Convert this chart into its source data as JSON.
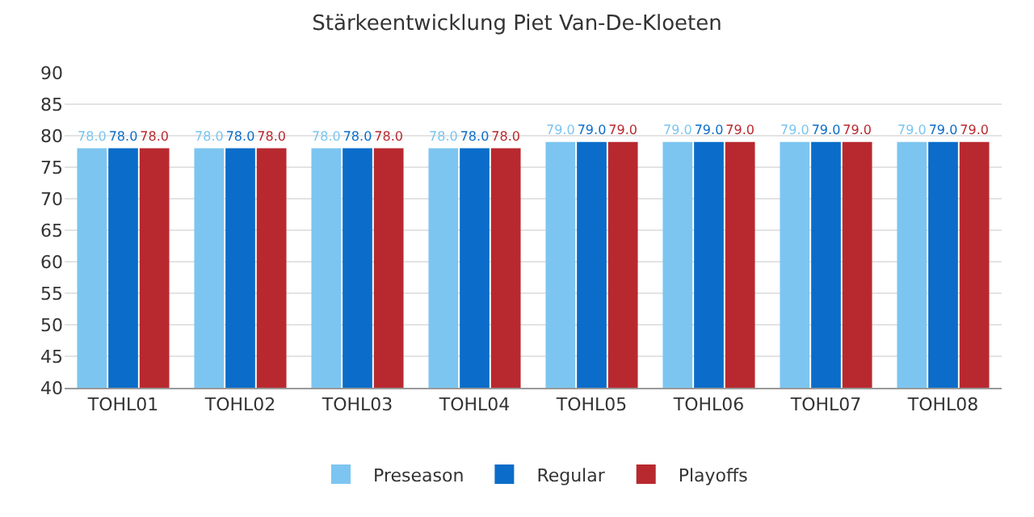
{
  "chart_data": {
    "type": "bar",
    "title": "Stärkeentwicklung Piet Van-De-Kloeten",
    "categories": [
      "TOHL01",
      "TOHL02",
      "TOHL03",
      "TOHL04",
      "TOHL05",
      "TOHL06",
      "TOHL07",
      "TOHL08"
    ],
    "series": [
      {
        "name": "Preseason",
        "color": "#7cc5f0",
        "values": [
          78,
          78,
          78,
          78,
          79,
          79,
          79,
          79
        ],
        "value_labels": [
          "78.0",
          "78.0",
          "78.0",
          "78.0",
          "79.0",
          "79.0",
          "79.0",
          "79.0"
        ]
      },
      {
        "name": "Regular",
        "color": "#0b6dc9",
        "values": [
          78,
          78,
          78,
          78,
          79,
          79,
          79,
          79
        ],
        "value_labels": [
          "78.0",
          "78.0",
          "78.0",
          "78.0",
          "79.0",
          "79.0",
          "79.0",
          "79.0"
        ]
      },
      {
        "name": "Playoffs",
        "color": "#b8292f",
        "values": [
          78,
          78,
          78,
          78,
          79,
          79,
          79,
          79
        ],
        "value_labels": [
          "78.0",
          "78.0",
          "78.0",
          "78.0",
          "79.0",
          "79.0",
          "79.0",
          "79.0"
        ]
      }
    ],
    "ylim": [
      40,
      90
    ],
    "yticks": [
      40,
      45,
      50,
      55,
      60,
      65,
      70,
      75,
      80,
      85,
      90
    ],
    "grid": "y",
    "legend": "bottom"
  }
}
